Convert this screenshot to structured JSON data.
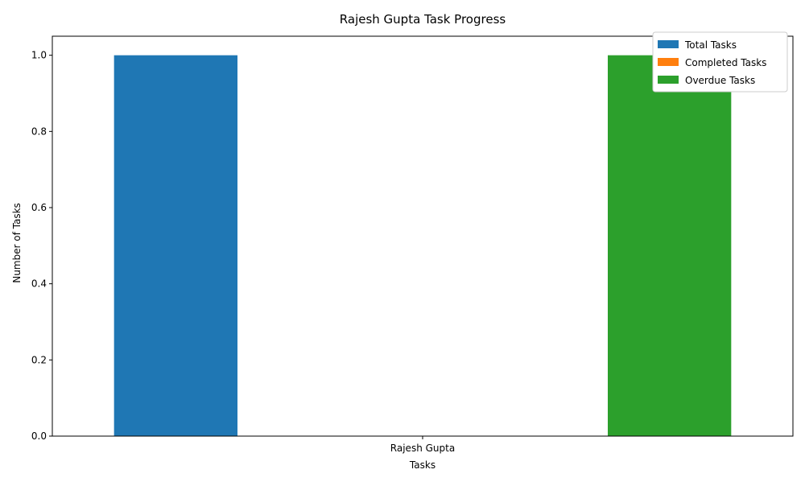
{
  "chart_data": {
    "type": "bar",
    "title": "Rajesh Gupta Task Progress",
    "xlabel": "Tasks",
    "ylabel": "Number of Tasks",
    "categories": [
      "Rajesh Gupta"
    ],
    "series": [
      {
        "name": "Total Tasks",
        "values": [
          1
        ],
        "color": "#1f77b4"
      },
      {
        "name": "Completed Tasks",
        "values": [
          0
        ],
        "color": "#ff7f0e"
      },
      {
        "name": "Overdue Tasks",
        "values": [
          1
        ],
        "color": "#2ca02c"
      }
    ],
    "ylim": [
      0,
      1.05
    ],
    "yticks": [
      "0.0",
      "0.2",
      "0.4",
      "0.6",
      "0.8",
      "1.0"
    ],
    "grid": false,
    "legend_position": "top-right"
  }
}
